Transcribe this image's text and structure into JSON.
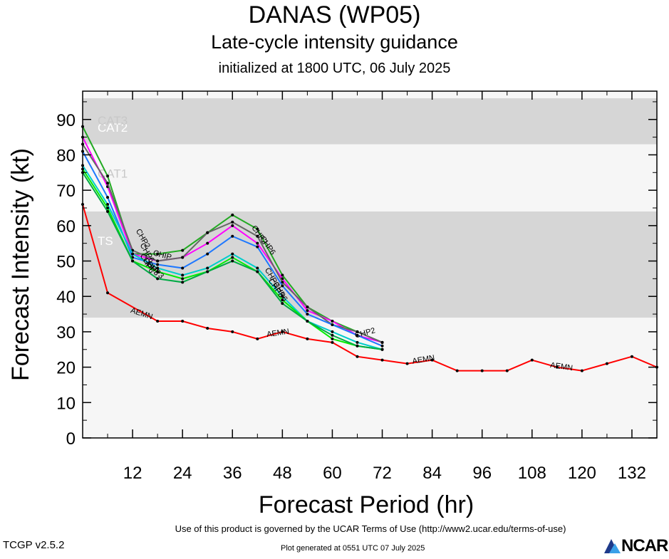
{
  "header": {
    "title": "DANAS (WP05)",
    "subtitle": "Late-cycle intensity guidance",
    "init": "initialized at 1800 UTC, 06 July 2025"
  },
  "footer": {
    "terms": "Use of this product is governed by the UCAR Terms of Use (http://www2.ucar.edu/terms-of-use)",
    "generated": "Plot generated at 0551 UTC   07 July 2025",
    "version": "TCGP v2.5.2",
    "logo": "NCAR"
  },
  "chart_data": {
    "type": "line",
    "title": "DANAS (WP05)",
    "xlabel": "Forecast Period (hr)",
    "ylabel": "Forecast Intensity (kt)",
    "xlim": [
      0,
      138
    ],
    "ylim": [
      0,
      98
    ],
    "xticks": [
      12,
      24,
      36,
      48,
      60,
      72,
      84,
      96,
      108,
      120,
      132
    ],
    "yticks": [
      0,
      10,
      20,
      30,
      40,
      50,
      60,
      70,
      80,
      90
    ],
    "bands": [
      {
        "label": "TS",
        "from": 34,
        "to": 64,
        "color": "#d6d6d6"
      },
      {
        "label": "CAT1",
        "from": 64,
        "to": 83,
        "color": "#f6f6f6"
      },
      {
        "label": "CAT2",
        "from": 83,
        "to": 96,
        "color": "#d6d6d6"
      },
      {
        "label": "CAT3",
        "from": 96,
        "to": 98,
        "color": "#f6f6f6"
      }
    ],
    "below_band_color": "#f6f6f6",
    "series": [
      {
        "name": "AEMN",
        "color": "#ff0000",
        "x": [
          0,
          6,
          18,
          24,
          30,
          36,
          42,
          48,
          54,
          60,
          66,
          72,
          78,
          84,
          90,
          96,
          102,
          108,
          114,
          120,
          126,
          132,
          138
        ],
        "y": [
          66,
          41,
          33,
          33,
          31,
          30,
          28,
          30,
          28,
          27,
          23,
          22,
          21,
          22,
          19,
          19,
          19,
          22,
          20,
          19,
          21,
          23,
          20
        ],
        "labels": [
          {
            "x": 14,
            "y": 34.5,
            "angle": 18
          },
          {
            "x": 47,
            "y": 29,
            "angle": -8
          },
          {
            "x": 82,
            "y": 21.5,
            "angle": -10
          },
          {
            "x": 115,
            "y": 19.5,
            "angle": 8
          }
        ]
      },
      {
        "name": "CHP2",
        "color": "#22aa22",
        "x": [
          0,
          6,
          12,
          18,
          24,
          30,
          36,
          42,
          48,
          54,
          60,
          66,
          72
        ],
        "y": [
          88,
          74,
          52,
          52,
          53,
          58,
          63,
          59,
          46,
          37,
          33,
          30,
          27
        ],
        "labels": [
          {
            "x": 14,
            "y": 56,
            "angle": 60
          },
          {
            "x": 42,
            "y": 57,
            "angle": 55
          }
        ]
      },
      {
        "name": "CHP2",
        "color": "#ff00ff",
        "x": [
          0,
          6,
          12,
          18,
          24,
          30,
          36,
          42,
          48,
          54,
          60,
          66,
          72
        ],
        "y": [
          85,
          71,
          52,
          50,
          51,
          55,
          60,
          55,
          45,
          36,
          33,
          29,
          27
        ],
        "labels": [
          {
            "x": 68,
            "y": 29,
            "angle": -15
          }
        ]
      },
      {
        "name": "CHP6",
        "color": "#666666",
        "x": [
          0,
          6,
          12,
          18,
          24,
          30,
          36,
          42,
          48,
          54,
          60,
          66,
          72
        ],
        "y": [
          83,
          72,
          53,
          50,
          51,
          58,
          61,
          57,
          44,
          37,
          32,
          30,
          27
        ],
        "labels": [
          {
            "x": 15,
            "y": 52,
            "angle": 60
          },
          {
            "x": 44,
            "y": 54,
            "angle": 55
          }
        ]
      },
      {
        "name": "CHP6",
        "color": "#1e78ff",
        "x": [
          0,
          6,
          12,
          18,
          24,
          30,
          36,
          42,
          48,
          54,
          60,
          66,
          72
        ],
        "y": [
          81,
          68,
          51,
          49,
          48,
          52,
          57,
          54,
          43,
          35,
          32,
          29,
          26
        ],
        "labels": [
          {
            "x": 15,
            "y": 49,
            "angle": 60
          },
          {
            "x": 47,
            "y": 41,
            "angle": 60
          }
        ]
      },
      {
        "name": "CHIP",
        "color": "#00cccc",
        "x": [
          0,
          6,
          12,
          18,
          24,
          30,
          36,
          42,
          48,
          54,
          60,
          66,
          72
        ],
        "y": [
          77,
          66,
          52,
          48,
          46,
          48,
          52,
          48,
          40,
          33,
          30,
          27,
          25
        ],
        "labels": [
          {
            "x": 19,
            "y": 51,
            "angle": 15
          }
        ]
      },
      {
        "name": "CHP3",
        "color": "#00ee00",
        "x": [
          0,
          6,
          12,
          18,
          24,
          30,
          36,
          42,
          48,
          54,
          60,
          66,
          72
        ],
        "y": [
          76,
          65,
          50,
          47,
          45,
          47,
          51,
          47,
          39,
          33,
          28,
          26,
          25
        ],
        "labels": [
          {
            "x": 17,
            "y": 47,
            "angle": 45
          },
          {
            "x": 46,
            "y": 42,
            "angle": 55
          }
        ]
      },
      {
        "name": "CHP3",
        "color": "#00aa44",
        "x": [
          0,
          6,
          12,
          18,
          24,
          30,
          36,
          42,
          48,
          54,
          60,
          66,
          72
        ],
        "y": [
          75,
          64,
          50,
          45,
          44,
          47,
          50,
          47,
          38,
          33,
          29,
          26,
          25
        ],
        "labels": [
          {
            "x": 16,
            "y": 48,
            "angle": 50
          },
          {
            "x": 45,
            "y": 45,
            "angle": 60
          }
        ]
      }
    ]
  }
}
